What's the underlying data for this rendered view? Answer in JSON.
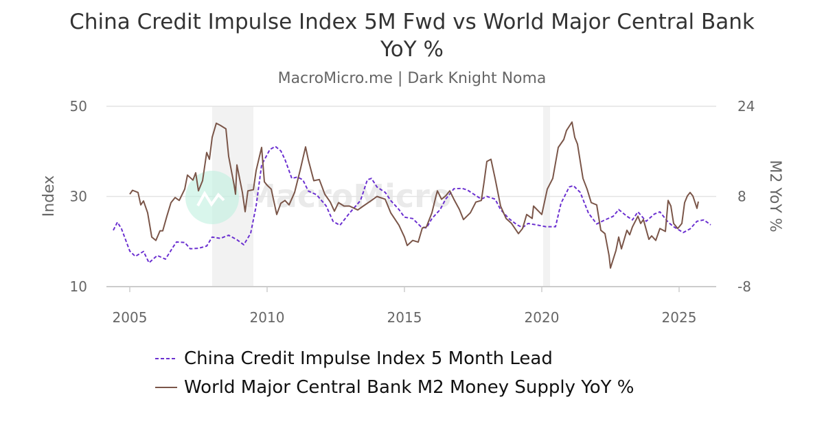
{
  "chart_data": {
    "type": "line",
    "title": "China Credit Impulse Index 5M Fwd vs World Major Central Bank YoY %",
    "subtitle": "MacroMicro.me | Dark Knight Noma",
    "watermark": "MacroMicro",
    "xlim": [
      2004.2,
      2026.4
    ],
    "x_ticks": [
      "2005",
      "2010",
      "2015",
      "2020",
      "2025"
    ],
    "y_left": {
      "label": "Index",
      "lim": [
        10,
        50
      ],
      "ticks": [
        "10",
        "30",
        "50"
      ]
    },
    "y_right": {
      "label": "M2 YoY %",
      "lim": [
        -8,
        24
      ],
      "ticks": [
        "-8",
        "8",
        "24"
      ]
    },
    "grid": true,
    "legend_position": "bottom",
    "shaded_periods": [
      [
        2008.0,
        2009.5
      ],
      [
        2020.05,
        2020.3
      ]
    ],
    "colors": {
      "china": "#6a2fd0",
      "m2": "#7a5548",
      "shade": "#f2f2f2"
    },
    "series": [
      {
        "name": "China Credit Impulse Index 5 Month Lead",
        "axis": "left",
        "style": "dashed",
        "x": [
          2004.4,
          2004.55,
          2004.7,
          2005.0,
          2005.2,
          2005.5,
          2005.7,
          2006.0,
          2006.3,
          2006.6,
          2006.7,
          2007.0,
          2007.2,
          2007.5,
          2007.8,
          2008.0,
          2008.3,
          2008.6,
          2008.9,
          2009.15,
          2009.4,
          2009.6,
          2009.8,
          2010.1,
          2010.3,
          2010.5,
          2010.65,
          2010.9,
          2011.1,
          2011.3,
          2011.5,
          2011.8,
          2012.15,
          2012.4,
          2012.65,
          2013.0,
          2013.4,
          2013.65,
          2013.8,
          2014.0,
          2014.3,
          2014.5,
          2014.8,
          2015.0,
          2015.3,
          2015.6,
          2015.8,
          2016.0,
          2016.3,
          2016.5,
          2016.8,
          2017.1,
          2017.3,
          2017.5,
          2017.8,
          2018.0,
          2018.3,
          2018.5,
          2018.8,
          2019.1,
          2019.3,
          2019.5,
          2019.8,
          2020.15,
          2020.5,
          2020.7,
          2021.0,
          2021.15,
          2021.4,
          2021.7,
          2022.0,
          2022.3,
          2022.6,
          2022.8,
          2023.1,
          2023.3,
          2023.5,
          2023.8,
          2024.1,
          2024.3,
          2024.6,
          2024.8,
          2025.15,
          2025.4,
          2025.65,
          2025.9,
          2026.15
        ],
        "values": [
          22.5,
          24.3,
          22.8,
          17.9,
          16.7,
          17.8,
          15.3,
          16.9,
          16.1,
          19.0,
          19.9,
          19.8,
          18.4,
          18.5,
          19.0,
          21.0,
          20.7,
          21.4,
          20.4,
          19.3,
          21.8,
          27.9,
          37.0,
          40.4,
          41.1,
          40.1,
          38.2,
          34.0,
          34.3,
          33.7,
          31.2,
          30.4,
          27.9,
          24.5,
          23.6,
          26.3,
          29.1,
          33.7,
          34.0,
          32.1,
          30.9,
          29.1,
          27.1,
          25.4,
          25.1,
          23.3,
          23.0,
          25.1,
          27.1,
          29.4,
          31.7,
          31.8,
          31.4,
          30.6,
          29.4,
          30.0,
          29.4,
          27.1,
          25.1,
          23.7,
          23.1,
          24.0,
          23.7,
          23.3,
          23.3,
          28.5,
          32.1,
          32.4,
          30.9,
          26.3,
          23.9,
          24.8,
          25.6,
          27.1,
          25.6,
          24.8,
          26.6,
          24.5,
          26.1,
          26.6,
          24.3,
          23.3,
          22.0,
          22.8,
          24.5,
          24.8,
          23.7
        ]
      },
      {
        "name": "World Major Central Bank M2 Money Supply YoY %",
        "axis": "right",
        "style": "solid",
        "x": [
          2005.0,
          2005.1,
          2005.3,
          2005.4,
          2005.5,
          2005.65,
          2005.8,
          2005.95,
          2006.1,
          2006.2,
          2006.35,
          2006.5,
          2006.65,
          2006.8,
          2007.0,
          2007.1,
          2007.3,
          2007.4,
          2007.5,
          2007.65,
          2007.8,
          2007.9,
          2008.0,
          2008.15,
          2008.3,
          2008.5,
          2008.6,
          2008.8,
          2008.85,
          2008.9,
          2009.1,
          2009.2,
          2009.3,
          2009.5,
          2009.6,
          2009.8,
          2009.9,
          2010.0,
          2010.15,
          2010.35,
          2010.5,
          2010.65,
          2010.8,
          2011.0,
          2011.2,
          2011.4,
          2011.5,
          2011.7,
          2011.9,
          2012.1,
          2012.3,
          2012.45,
          2012.6,
          2012.8,
          2013.0,
          2013.3,
          2013.5,
          2013.8,
          2014.0,
          2014.3,
          2014.5,
          2014.8,
          2015.0,
          2015.1,
          2015.3,
          2015.5,
          2015.65,
          2015.8,
          2016.0,
          2016.15,
          2016.2,
          2016.35,
          2016.5,
          2016.65,
          2016.8,
          2017.0,
          2017.15,
          2017.4,
          2017.6,
          2017.8,
          2017.9,
          2018.0,
          2018.15,
          2018.3,
          2018.5,
          2018.7,
          2018.9,
          2019.15,
          2019.3,
          2019.45,
          2019.65,
          2019.7,
          2020.0,
          2020.2,
          2020.4,
          2020.6,
          2020.8,
          2020.9,
          2021.1,
          2021.2,
          2021.3,
          2021.5,
          2021.65,
          2021.8,
          2022.0,
          2022.15,
          2022.3,
          2022.45,
          2022.5,
          2022.7,
          2022.8,
          2022.9,
          2023.1,
          2023.2,
          2023.3,
          2023.5,
          2023.6,
          2023.7,
          2023.9,
          2024.0,
          2024.15,
          2024.3,
          2024.5,
          2024.6,
          2024.7,
          2024.8,
          2024.95,
          2025.1,
          2025.2,
          2025.3,
          2025.4,
          2025.5,
          2025.65,
          2025.7
        ],
        "values": [
          8.4,
          9.1,
          8.7,
          6.5,
          7.2,
          5.1,
          0.8,
          0.2,
          1.9,
          1.9,
          4.5,
          6.9,
          7.8,
          7.3,
          9.3,
          11.8,
          10.9,
          12.2,
          9.0,
          10.8,
          15.8,
          14.6,
          18.5,
          21.0,
          20.6,
          20.0,
          15.1,
          10.0,
          8.4,
          13.6,
          8.7,
          5.3,
          9.0,
          9.2,
          12.6,
          16.7,
          10.6,
          10.0,
          9.3,
          4.8,
          6.8,
          7.3,
          6.5,
          8.7,
          12.6,
          16.8,
          14.5,
          10.8,
          11.0,
          8.4,
          7.0,
          5.4,
          6.9,
          6.3,
          6.3,
          5.6,
          6.3,
          7.3,
          8.0,
          7.5,
          5.1,
          2.9,
          0.8,
          -0.7,
          0.2,
          -0.1,
          2.4,
          2.6,
          5.1,
          8.1,
          9.0,
          7.5,
          8.1,
          9.0,
          7.5,
          5.7,
          3.9,
          5.1,
          7.0,
          7.3,
          10.6,
          14.2,
          14.6,
          11.2,
          6.3,
          4.1,
          3.2,
          1.4,
          2.3,
          4.8,
          4.1,
          6.3,
          4.8,
          9.3,
          11.2,
          16.7,
          18.1,
          19.7,
          21.2,
          18.5,
          17.3,
          11.2,
          9.3,
          6.9,
          6.5,
          2.0,
          1.4,
          -2.5,
          -4.7,
          -1.6,
          0.8,
          -1.3,
          2.0,
          1.2,
          2.6,
          4.5,
          3.2,
          3.9,
          0.4,
          1.0,
          0.2,
          2.3,
          1.8,
          7.3,
          6.3,
          3.2,
          2.3,
          3.2,
          6.9,
          8.1,
          8.7,
          8.1,
          5.9,
          7.1
        ]
      }
    ]
  }
}
